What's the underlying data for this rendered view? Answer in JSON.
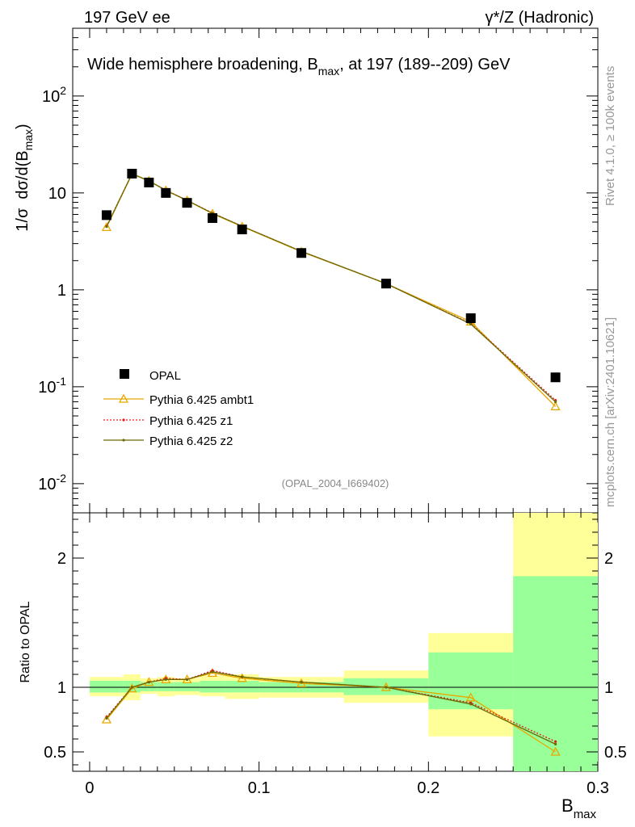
{
  "header": {
    "left": "197 GeV ee",
    "right": "γ*/Z (Hadronic)"
  },
  "side_labels": {
    "rivet": "Rivet 4.1.0, ≥ 100k events",
    "mcplots": "mcplots.cern.ch [arXiv:2401.10621]"
  },
  "chart_data": {
    "type": "line",
    "title": "Wide hemisphere broadening, B_max, at 197 (189--209) GeV",
    "analysis_id": "(OPAL_2004_I669402)",
    "xlabel": "B_max",
    "ylabel": "1/σ dσ/d(B_max)",
    "ratio_ylabel": "Ratio to OPAL",
    "xlim": [
      -0.01,
      0.3
    ],
    "ylim": [
      0.005,
      500
    ],
    "yscale": "log",
    "ratio_ylim": [
      0.35,
      2.35
    ],
    "x_ticks": [
      "0",
      "0.1",
      "0.2",
      "0.3"
    ],
    "y_ticks": [
      "10^-2",
      "10^-1",
      "1",
      "10",
      "10^2"
    ],
    "ratio_ticks": [
      "0.5",
      "1",
      "2"
    ],
    "bins": [
      {
        "lo": 0.0,
        "hi": 0.02
      },
      {
        "lo": 0.02,
        "hi": 0.03
      },
      {
        "lo": 0.03,
        "hi": 0.04
      },
      {
        "lo": 0.04,
        "hi": 0.05
      },
      {
        "lo": 0.05,
        "hi": 0.065
      },
      {
        "lo": 0.065,
        "hi": 0.08
      },
      {
        "lo": 0.08,
        "hi": 0.1
      },
      {
        "lo": 0.1,
        "hi": 0.15
      },
      {
        "lo": 0.15,
        "hi": 0.2
      },
      {
        "lo": 0.2,
        "hi": 0.25
      },
      {
        "lo": 0.25,
        "hi": 0.3
      }
    ],
    "x": [
      0.01,
      0.025,
      0.035,
      0.045,
      0.0575,
      0.0725,
      0.09,
      0.125,
      0.175,
      0.225,
      0.275
    ],
    "data": {
      "name": "OPAL",
      "values": [
        5.9,
        15.8,
        12.8,
        10.0,
        7.9,
        5.5,
        4.2,
        2.4,
        1.16,
        0.51,
        0.125
      ],
      "stat_band_lo": [
        0.96,
        0.96,
        0.97,
        0.97,
        0.97,
        0.96,
        0.96,
        0.96,
        0.94,
        0.83,
        0.35
      ],
      "stat_band_hi": [
        1.05,
        1.05,
        1.04,
        1.04,
        1.04,
        1.05,
        1.05,
        1.04,
        1.07,
        1.27,
        1.86
      ],
      "total_band_lo": [
        0.93,
        0.9,
        0.95,
        0.93,
        0.94,
        0.93,
        0.91,
        0.92,
        0.88,
        0.62,
        0.35
      ],
      "total_band_hi": [
        1.08,
        1.1,
        1.07,
        1.08,
        1.07,
        1.09,
        1.1,
        1.08,
        1.13,
        1.42,
        2.35
      ]
    },
    "series": [
      {
        "name": "Pythia 6.425 ambt1",
        "color": "#e8a800",
        "style": "solid-triangle",
        "ratio": [
          0.75,
          0.99,
          1.04,
          1.06,
          1.06,
          1.11,
          1.07,
          1.03,
          1.0,
          0.92,
          0.5
        ]
      },
      {
        "name": "Pythia 6.425 z1",
        "color": "#e41a1c",
        "style": "dotted",
        "ratio": [
          0.77,
          1.0,
          1.04,
          1.07,
          1.06,
          1.13,
          1.08,
          1.04,
          1.0,
          0.88,
          0.58
        ]
      },
      {
        "name": "Pythia 6.425 z2",
        "color": "#6b6b00",
        "style": "solid-dot",
        "ratio": [
          0.76,
          1.0,
          1.04,
          1.06,
          1.06,
          1.12,
          1.08,
          1.04,
          1.0,
          0.87,
          0.56
        ]
      }
    ]
  }
}
